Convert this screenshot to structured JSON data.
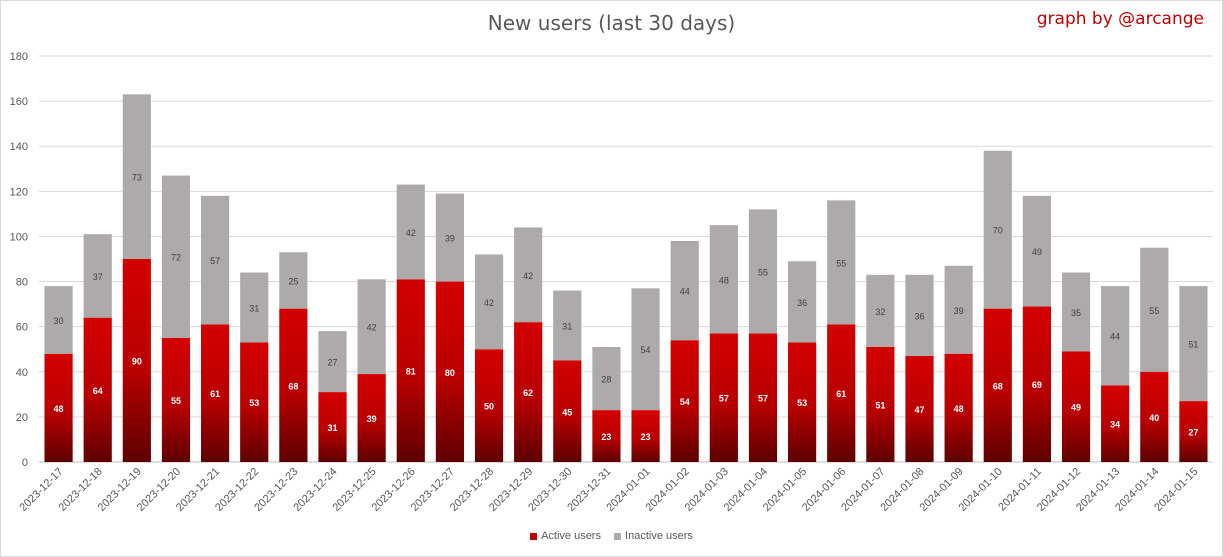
{
  "chart_data": {
    "type": "bar",
    "stacked": true,
    "title": "New users (last 30 days)",
    "annotation": "graph by @arcange",
    "categories": [
      "2023-12-17",
      "2023-12-18",
      "2023-12-19",
      "2023-12-20",
      "2023-12-21",
      "2023-12-22",
      "2023-12-23",
      "2023-12-24",
      "2023-12-25",
      "2023-12-26",
      "2023-12-27",
      "2023-12-28",
      "2023-12-29",
      "2023-12-30",
      "2023-12-31",
      "2024-01-01",
      "2024-01-02",
      "2024-01-03",
      "2024-01-04",
      "2024-01-05",
      "2024-01-06",
      "2024-01-07",
      "2024-01-08",
      "2024-01-09",
      "2024-01-10",
      "2024-01-11",
      "2024-01-12",
      "2024-01-13",
      "2024-01-14",
      "2024-01-15"
    ],
    "series": [
      {
        "name": "Active users",
        "color": "#c00000",
        "values": [
          48,
          64,
          90,
          55,
          61,
          53,
          68,
          31,
          39,
          81,
          80,
          50,
          62,
          45,
          23,
          23,
          54,
          57,
          57,
          53,
          61,
          51,
          47,
          48,
          68,
          69,
          49,
          34,
          40,
          27
        ]
      },
      {
        "name": "Inactive users",
        "color": "#aeaaaa",
        "values": [
          30,
          37,
          73,
          72,
          57,
          31,
          25,
          27,
          42,
          42,
          39,
          42,
          42,
          31,
          28,
          54,
          44,
          48,
          55,
          36,
          55,
          32,
          36,
          39,
          70,
          49,
          35,
          44,
          55,
          51
        ]
      }
    ],
    "ylim": [
      0,
      180
    ],
    "yticks": [
      0,
      20,
      40,
      60,
      80,
      100,
      120,
      140,
      160,
      180
    ],
    "grid": true,
    "legend_position": "bottom"
  }
}
